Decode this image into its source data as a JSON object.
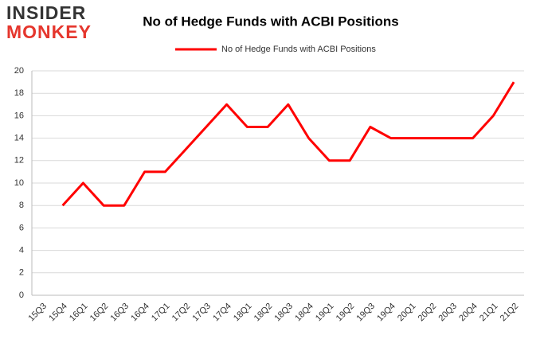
{
  "logo": {
    "line1": "INSIDER",
    "line2": "MONKEY"
  },
  "chart_data": {
    "type": "line",
    "title": "No of Hedge Funds with ACBI Positions",
    "categories": [
      "15Q3",
      "15Q4",
      "16Q1",
      "16Q2",
      "16Q3",
      "16Q4",
      "17Q1",
      "17Q2",
      "17Q3",
      "17Q4",
      "18Q1",
      "18Q2",
      "18Q3",
      "18Q4",
      "19Q1",
      "19Q2",
      "19Q3",
      "19Q4",
      "20Q1",
      "20Q2",
      "20Q3",
      "20Q4",
      "21Q1",
      "21Q2"
    ],
    "series": [
      {
        "name": "No of Hedge Funds with ACBI Positions",
        "color": "#ff0000",
        "values": [
          null,
          8,
          10,
          8,
          8,
          11,
          11,
          13,
          15,
          17,
          15,
          15,
          17,
          14,
          12,
          12,
          15,
          14,
          14,
          14,
          14,
          14,
          16,
          19
        ]
      }
    ],
    "ylim": [
      0,
      20
    ],
    "yticks": [
      0,
      2,
      4,
      6,
      8,
      10,
      12,
      14,
      16,
      18,
      20
    ],
    "grid": true,
    "legend": "top"
  }
}
